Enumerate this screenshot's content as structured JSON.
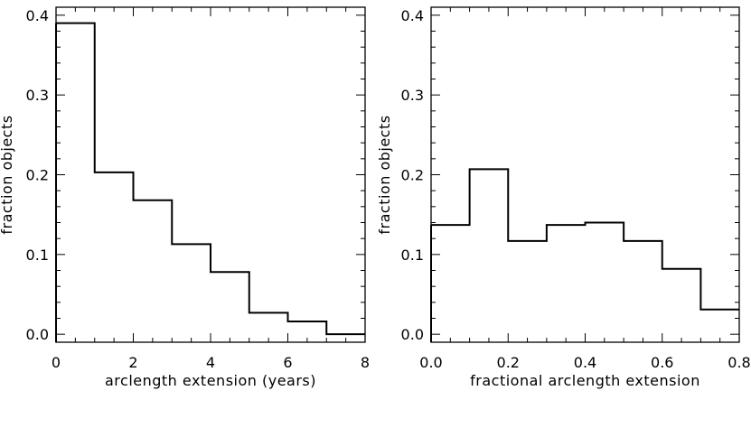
{
  "chart_data": [
    {
      "type": "histogram",
      "xlabel": "arclength extension (years)",
      "ylabel": "fraction objects",
      "xlim": [
        0,
        8
      ],
      "ylim": [
        -0.01,
        0.41
      ],
      "bin_edges": [
        0,
        1,
        2,
        3,
        4,
        5,
        6,
        7,
        8
      ],
      "values": [
        0.39,
        0.203,
        0.168,
        0.113,
        0.078,
        0.027,
        0.016,
        0.0
      ],
      "xticks": [
        0,
        2,
        4,
        6,
        8
      ],
      "xtick_labels": [
        "0",
        "2",
        "4",
        "6",
        "8"
      ],
      "yticks": [
        0.0,
        0.1,
        0.2,
        0.3,
        0.4
      ],
      "ytick_labels": [
        "0.0",
        "0.1",
        "0.2",
        "0.3",
        "0.4"
      ]
    },
    {
      "type": "histogram",
      "xlabel": "fractional arclength extension",
      "ylabel": "fraction objects",
      "xlim": [
        0,
        0.8
      ],
      "ylim": [
        -0.01,
        0.41
      ],
      "bin_edges": [
        0.0,
        0.1,
        0.2,
        0.3,
        0.4,
        0.5,
        0.6,
        0.7,
        0.8
      ],
      "values": [
        0.137,
        0.207,
        0.117,
        0.137,
        0.14,
        0.117,
        0.082,
        0.031
      ],
      "xticks": [
        0.0,
        0.2,
        0.4,
        0.6,
        0.8
      ],
      "xtick_labels": [
        "0.0",
        "0.2",
        "0.4",
        "0.6",
        "0.8"
      ],
      "yticks": [
        0.0,
        0.1,
        0.2,
        0.3,
        0.4
      ],
      "ytick_labels": [
        "0.0",
        "0.1",
        "0.2",
        "0.3",
        "0.4"
      ]
    }
  ]
}
